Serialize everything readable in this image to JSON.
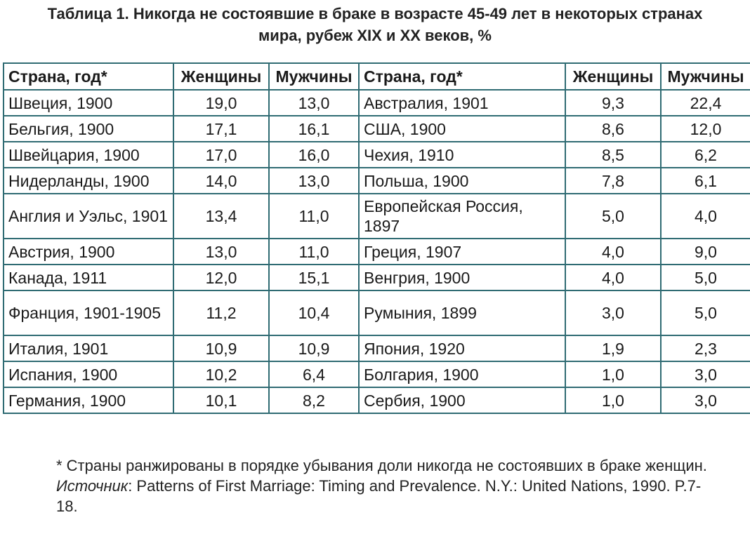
{
  "title": {
    "line1": "Таблица 1. Никогда не состоявшие в браке в возрасте 45-49 лет в некоторых странах",
    "line2": "мира, рубеж XIX и XX веков, %"
  },
  "headers": [
    "Страна, год*",
    "Женщины",
    "Мужчины",
    "Страна, год*",
    "Женщины",
    "Мужчины"
  ],
  "rows": [
    {
      "c1": "Швеция, 1900",
      "w1": "19,0",
      "m1": "13,0",
      "c2": "Австралия, 1901",
      "w2": "9,3",
      "m2": "22,4"
    },
    {
      "c1": "Бельгия, 1900",
      "w1": "17,1",
      "m1": "16,1",
      "c2": "США, 1900",
      "w2": "8,6",
      "m2": "12,0"
    },
    {
      "c1": "Швейцария, 1900",
      "w1": "17,0",
      "m1": "16,0",
      "c2": "Чехия, 1910",
      "w2": "8,5",
      "m2": "6,2"
    },
    {
      "c1": "Нидерланды, 1900",
      "w1": "14,0",
      "m1": "13,0",
      "c2": "Польша, 1900",
      "w2": "7,8",
      "m2": "6,1"
    },
    {
      "c1": "Англия и Уэльс, 1901",
      "w1": "13,4",
      "m1": "11,0",
      "c2": "Европейская Россия, 1897",
      "w2": "5,0",
      "m2": "4,0"
    },
    {
      "c1": "Австрия, 1900",
      "w1": "13,0",
      "m1": "11,0",
      "c2": "Греция, 1907",
      "w2": "4,0",
      "m2": "9,0"
    },
    {
      "c1": "Канада, 1911",
      "w1": "12,0",
      "m1": "15,1",
      "c2": "Венгрия, 1900",
      "w2": "4,0",
      "m2": "5,0"
    },
    {
      "c1": "Франция, 1901-1905",
      "w1": "11,2",
      "m1": "10,4",
      "c2": "Румыния, 1899",
      "w2": "3,0",
      "m2": "5,0"
    },
    {
      "c1": "Италия, 1901",
      "w1": "10,9",
      "m1": "10,9",
      "c2": "Япония, 1920",
      "w2": "1,9",
      "m2": "2,3"
    },
    {
      "c1": "Испания, 1900",
      "w1": "10,2",
      "m1": "6,4",
      "c2": "Болгария, 1900",
      "w2": "1,0",
      "m2": "3,0"
    },
    {
      "c1": "Германия, 1900",
      "w1": "10,1",
      "m1": "8,2",
      "c2": "Сербия, 1900",
      "w2": "1,0",
      "m2": "3,0"
    }
  ],
  "footnote": {
    "line1": "* Страны ранжированы в порядке убывания доли никогда не состоявших в браке женщин.",
    "source_label": "Источник",
    "source_text": ": Patterns of First Marriage: Timing and Prevalence. N.Y.: United Nations, 1990. P.7-18."
  }
}
